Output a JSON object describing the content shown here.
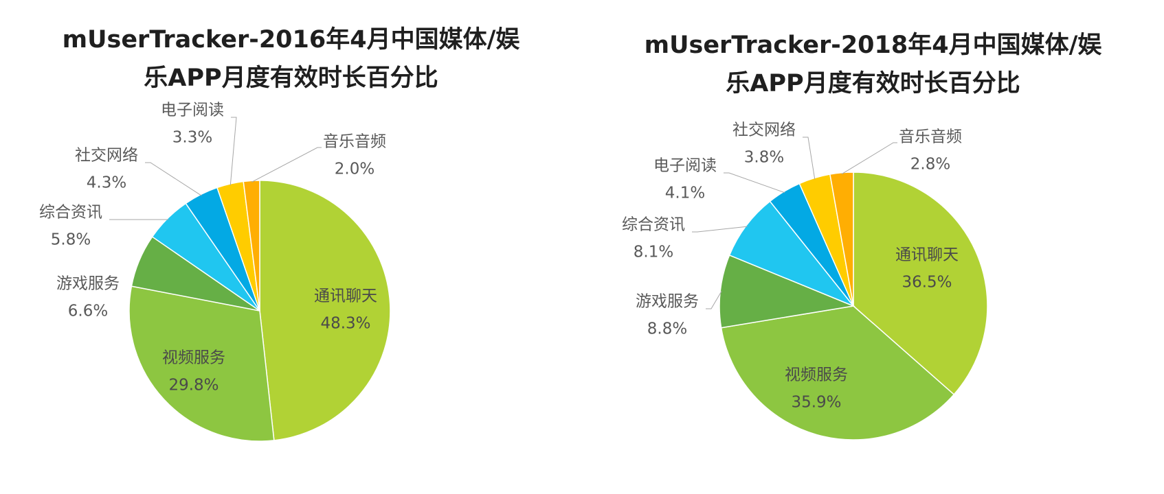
{
  "chart_data": [
    {
      "type": "pie",
      "title_lines": [
        "mUserTracker-2016年4月中国媒体/娱",
        "乐APP月度有效时长百分比"
      ],
      "slices": [
        {
          "label": "通讯聊天",
          "value": 48.3,
          "value_label": "48.3%",
          "color": "#B1D235",
          "label_position": "inside"
        },
        {
          "label": "视频服务",
          "value": 29.8,
          "value_label": "29.8%",
          "color": "#8DC641",
          "label_position": "inside"
        },
        {
          "label": "游戏服务",
          "value": 6.6,
          "value_label": "6.6%",
          "color": "#66AF46",
          "label_position": "outside"
        },
        {
          "label": "综合资讯",
          "value": 5.8,
          "value_label": "5.8%",
          "color": "#20C6F0",
          "label_position": "outside"
        },
        {
          "label": "社交网络",
          "value": 4.3,
          "value_label": "4.3%",
          "color": "#03A9E4",
          "label_position": "outside"
        },
        {
          "label": "电子阅读",
          "value": 3.3,
          "value_label": "3.3%",
          "color": "#FFCC00",
          "label_position": "outside"
        },
        {
          "label": "音乐音频",
          "value": 2.0,
          "value_label": "2.0%",
          "color": "#FFAE03",
          "label_position": "outside"
        }
      ]
    },
    {
      "type": "pie",
      "title_lines": [
        "mUserTracker-2018年4月中国媒体/娱",
        "乐APP月度有效时长百分比"
      ],
      "slices": [
        {
          "label": "通讯聊天",
          "value": 36.5,
          "value_label": "36.5%",
          "color": "#B1D235",
          "label_position": "inside"
        },
        {
          "label": "视频服务",
          "value": 35.9,
          "value_label": "35.9%",
          "color": "#8DC641",
          "label_position": "inside"
        },
        {
          "label": "游戏服务",
          "value": 8.8,
          "value_label": "8.8%",
          "color": "#66AF46",
          "label_position": "outside"
        },
        {
          "label": "综合资讯",
          "value": 8.1,
          "value_label": "8.1%",
          "color": "#20C6F0",
          "label_position": "outside"
        },
        {
          "label": "电子阅读",
          "value": 4.1,
          "value_label": "4.1%",
          "color": "#03A9E4",
          "label_position": "outside"
        },
        {
          "label": "社交网络",
          "value": 3.8,
          "value_label": "3.8%",
          "color": "#FFCC00",
          "label_position": "outside"
        },
        {
          "label": "音乐音频",
          "value": 2.8,
          "value_label": "2.8%",
          "color": "#FFAE03",
          "label_position": "outside"
        }
      ]
    }
  ]
}
